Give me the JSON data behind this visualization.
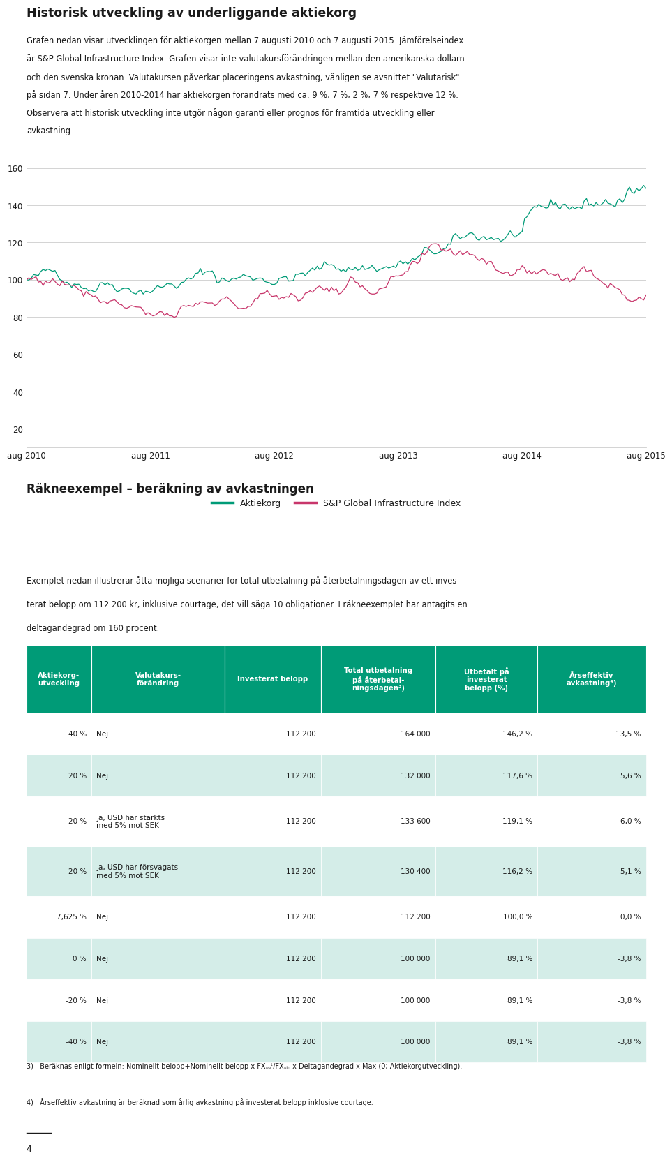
{
  "title": "Historisk utveckling av underliggande aktiekorg",
  "intro_text_lines": [
    "Grafen nedan visar utvecklingen för aktiekorgen mellan 7 augusti 2010 och 7 augusti 2015. Jämförelseindex",
    "är S&P Global Infrastructure Index. Grafen visar inte valutakursförändringen mellan den amerikanska dollarn",
    "och den svenska kronan. Valutakursen påverkar placeringens avkastning, vänligen se avsnittet \"Valutarisk\"",
    "på sidan 7. Under åren 2010-2014 har aktiekorgen förändrats med ca: 9 %, 7 %, 2 %, 7 % respektive 12 %.",
    "Observera att historisk utveckling inte utgör någon garanti eller prognos för framtida utveckling eller",
    "avkastning."
  ],
  "yticks": [
    20,
    40,
    60,
    80,
    100,
    120,
    140,
    160
  ],
  "xtick_labels": [
    "aug 2010",
    "aug 2011",
    "aug 2012",
    "aug 2013",
    "aug 2014",
    "aug 2015"
  ],
  "line1_color": "#009B77",
  "line2_color": "#C8366B",
  "legend_labels": [
    "Aktiekorg",
    "S&P Global Infrastructure Index"
  ],
  "section2_title": "Räkneexempel – beräkning av avkastningen",
  "section2_text_lines": [
    "Exemplet nedan illustrerar åtta möjliga scenarier för total utbetalning på återbetalningsdagen av ett inves-",
    "terat belopp om 112 200 kr, inklusive courtage, det vill säga 10 obligationer. I räkneexemplet har antagits en",
    "deltagandegrad om 160 procent."
  ],
  "table_header_bg": "#009B77",
  "table_header_text": "#ffffff",
  "table_row_bg1": "#ffffff",
  "table_row_bg2": "#d4ede8",
  "table_border_color": "#009B77",
  "table_headers": [
    "Aktiekorg-\nutveckling",
    "Valutakurs-\nförändring",
    "Investerat belopp",
    "Total utbetalning\npå återbetal-\nningsdagen³)",
    "Utbetalt på\ninvesterat\nbelopp (%)",
    "Årseffektiv\navkastning⁴)"
  ],
  "table_col_widths": [
    0.105,
    0.215,
    0.155,
    0.185,
    0.165,
    0.175
  ],
  "table_data": [
    [
      "40 %",
      "Nej",
      "112 200",
      "164 000",
      "146,2 %",
      "13,5 %"
    ],
    [
      "20 %",
      "Nej",
      "112 200",
      "132 000",
      "117,6 %",
      "5,6 %"
    ],
    [
      "20 %",
      "Ja, USD har stärkts\nmed 5% mot SEK",
      "112 200",
      "133 600",
      "119,1 %",
      "6,0 %"
    ],
    [
      "20 %",
      "Ja, USD har försvagats\nmed 5% mot SEK",
      "112 200",
      "130 400",
      "116,2 %",
      "5,1 %"
    ],
    [
      "7,625 %",
      "Nej",
      "112 200",
      "112 200",
      "100,0 %",
      "0,0 %"
    ],
    [
      "0 %",
      "Nej",
      "112 200",
      "100 000",
      "89,1 %",
      "-3,8 %"
    ],
    [
      "-20 %",
      "Nej",
      "112 200",
      "100 000",
      "89,1 %",
      "-3,8 %"
    ],
    [
      "-40 %",
      "Nej",
      "112 200",
      "100 000",
      "89,1 %",
      "-3,8 %"
    ]
  ],
  "footnote3": "3)   Beräknas enligt formeln: Nominellt belopp+Nominellt belopp x FXₛᵤᵗ/FXₛᵢₙ x Deltagandegrad x Max (0; Aktiekorgutveckling).",
  "footnote4": "4)   Årseffektiv avkastning är beräknad som årlig avkastning på investerat belopp inklusive courtage.",
  "page_number": "4",
  "bg_color": "#ffffff",
  "text_color": "#1a1a1a",
  "grid_color": "#cccccc"
}
